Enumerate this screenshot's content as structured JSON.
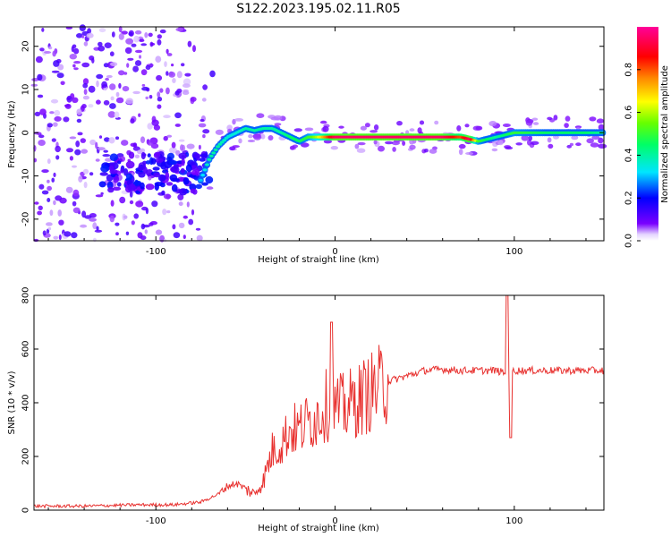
{
  "title": "S122.2023.195.02.11.R05",
  "colors": {
    "snr_line": "#e8312f",
    "axis": "#000000",
    "background": "#ffffff"
  },
  "chart_data": [
    {
      "type": "heatmap",
      "title": "",
      "xlabel": "Height of straight line (km)",
      "ylabel": "Frequency (Hz)",
      "xlim": [
        -168,
        150
      ],
      "ylim": [
        -25,
        24.5
      ],
      "xticks": [
        -100,
        0,
        100
      ],
      "xtick_labels": [
        "-100",
        "0",
        "100"
      ],
      "yticks": [
        -20,
        -10,
        0,
        10,
        20
      ],
      "ytick_labels": [
        "-20",
        "-10",
        "0",
        "10",
        "20"
      ],
      "colorbar": {
        "label": "Normalized spectral amplitude",
        "range": [
          0,
          1
        ],
        "ticks": [
          0.0,
          0.2,
          0.4,
          0.6,
          0.8
        ],
        "tick_labels": [
          "0.0",
          "0.2",
          "0.4",
          "0.6",
          "0.8"
        ],
        "colormap": "gist_rainbow (white to violet at low end)"
      },
      "frequency_trace": {
        "x": [
          -75,
          -70,
          -65,
          -60,
          -55,
          -50,
          -45,
          -40,
          -35,
          -30,
          -25,
          -20,
          -15,
          -10,
          0,
          20,
          40,
          60,
          70,
          75,
          80,
          85,
          90,
          100,
          120,
          140,
          150
        ],
        "y": [
          -11,
          -6,
          -3,
          -1,
          0,
          1,
          0.5,
          1,
          1,
          0,
          -1,
          -2,
          -1,
          -1,
          -1,
          -1,
          -1,
          -1,
          -1,
          -1.5,
          -2,
          -1.5,
          -1,
          0,
          0,
          0,
          0
        ],
        "amplitude": [
          0.3,
          0.4,
          0.4,
          0.35,
          0.35,
          0.4,
          0.4,
          0.4,
          0.4,
          0.4,
          0.45,
          0.45,
          0.5,
          0.6,
          0.95,
          0.95,
          0.95,
          0.95,
          0.8,
          0.95,
          0.5,
          0.45,
          0.4,
          0.5,
          0.45,
          0.45,
          0.4
        ]
      }
    },
    {
      "type": "line",
      "title": "",
      "xlabel": "Height of straight line (km)",
      "ylabel": "SNR (10 * v/v)",
      "xlim": [
        -168,
        150
      ],
      "ylim": [
        0,
        800
      ],
      "xticks": [
        -100,
        0,
        100
      ],
      "xtick_labels": [
        "-100",
        "0",
        "100"
      ],
      "yticks": [
        0,
        200,
        400,
        600,
        800
      ],
      "ytick_labels": [
        "0",
        "200",
        "400",
        "600",
        "800"
      ],
      "series": [
        {
          "name": "SNR",
          "x": [
            -168,
            -140,
            -110,
            -90,
            -75,
            -65,
            -60,
            -55,
            -50,
            -45,
            -40,
            -35,
            -30,
            -25,
            -20,
            -15,
            -10,
            -5,
            0,
            5,
            10,
            15,
            20,
            25,
            30,
            40,
            50,
            60,
            70,
            80,
            85,
            90,
            95,
            100,
            105,
            110,
            130,
            150
          ],
          "y": [
            15,
            15,
            20,
            20,
            30,
            60,
            90,
            100,
            80,
            60,
            110,
            220,
            250,
            300,
            300,
            330,
            350,
            390,
            380,
            380,
            400,
            420,
            440,
            460,
            480,
            500,
            520,
            525,
            520,
            520,
            520,
            520,
            510,
            520,
            520,
            520,
            520,
            520
          ],
          "spikes": [
            {
              "x": -2,
              "y": 700
            },
            {
              "x": 96,
              "y": 800
            },
            {
              "x": 98,
              "y": 270
            }
          ]
        }
      ]
    }
  ]
}
